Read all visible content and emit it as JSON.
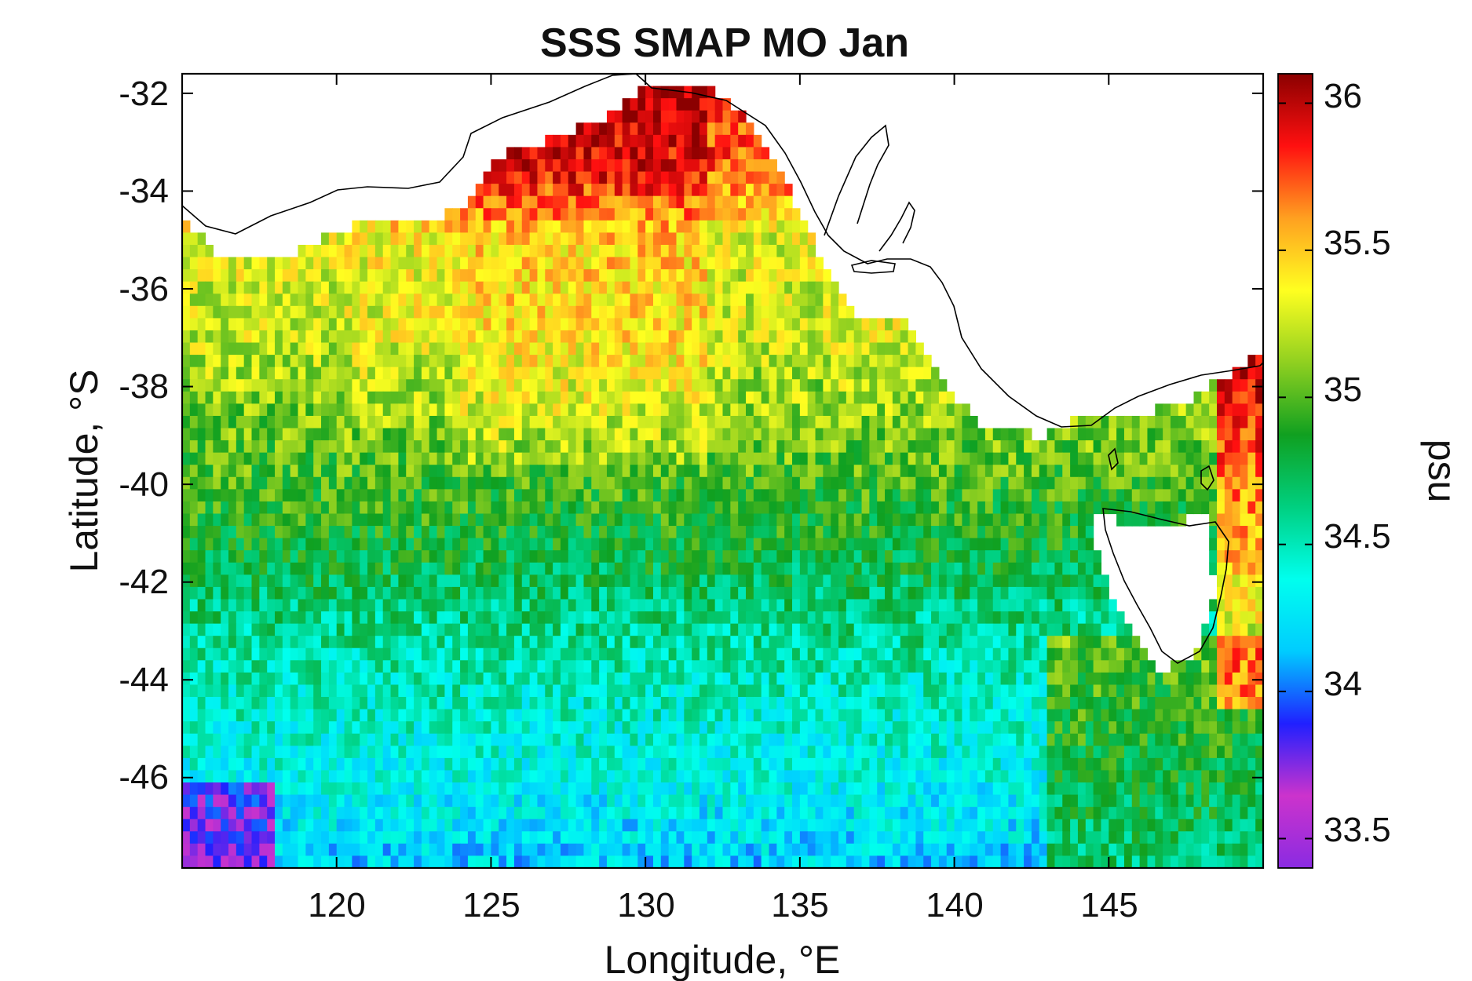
{
  "chart_data": {
    "type": "heatmap",
    "title": "SSS SMAP MO Jan",
    "xlabel": "Longitude, °E",
    "ylabel": "Latitude, °S",
    "colorbar_label": "psu",
    "xlim": [
      115.0,
      150.0
    ],
    "ylim": [
      -47.85,
      -31.6
    ],
    "x_ticks": [
      120,
      125,
      130,
      135,
      140,
      145
    ],
    "x_tick_labels": [
      "120",
      "125",
      "130",
      "135",
      "140",
      "145"
    ],
    "y_ticks": [
      -32,
      -34,
      -36,
      -38,
      -40,
      -42,
      -44,
      -46
    ],
    "y_tick_labels": [
      "-32",
      "-34",
      "-36",
      "-38",
      "-40",
      "-42",
      "-44",
      "-46"
    ],
    "colorbar_range": [
      33.4,
      36.1
    ],
    "colorbar_ticks": [
      33.5,
      34,
      34.5,
      35,
      35.5,
      36
    ],
    "colorbar_tick_labels": [
      "33.5",
      "34",
      "34.5",
      "35",
      "35.5",
      "36"
    ],
    "colormap": [
      "#8a2be2",
      "#cc33cc",
      "#2020ff",
      "#00ccff",
      "#00ffee",
      "#00d080",
      "#10a020",
      "#90d020",
      "#ffff20",
      "#ffa020",
      "#ff1010",
      "#8b0000"
    ],
    "grid": false,
    "grid_resolution_deg": 0.25,
    "approximate_field_psu": [
      {
        "lat": -33.0,
        "lon_range": [
          124,
          134
        ],
        "value": 35.9
      },
      {
        "lat": -35.0,
        "lon_range": [
          124,
          132
        ],
        "value": 35.45
      },
      {
        "lat": -37.0,
        "lon_range": [
          115,
          124
        ],
        "value": 35.2
      },
      {
        "lat": -37.0,
        "lon_range": [
          124,
          131
        ],
        "value": 35.4
      },
      {
        "lat": -39.0,
        "lon_range": [
          115,
          130
        ],
        "value": 35.15
      },
      {
        "lat": -40.5,
        "lon_range": [
          115,
          140
        ],
        "value": 34.95
      },
      {
        "lat": -42.0,
        "lon_range": [
          115,
          145
        ],
        "value": 34.75
      },
      {
        "lat": -44.0,
        "lon_range": [
          115,
          140
        ],
        "value": 34.5
      },
      {
        "lat": -44.0,
        "lon_range": [
          144,
          150
        ],
        "value": 34.95
      },
      {
        "lat": -46.5,
        "lon_range": [
          115,
          145
        ],
        "value": 34.25
      },
      {
        "lat": -47.5,
        "lon_range": [
          115,
          117
        ],
        "value": 33.75
      },
      {
        "lat": -40.0,
        "lon_range": [
          148,
          150
        ],
        "value": 35.8
      }
    ]
  }
}
